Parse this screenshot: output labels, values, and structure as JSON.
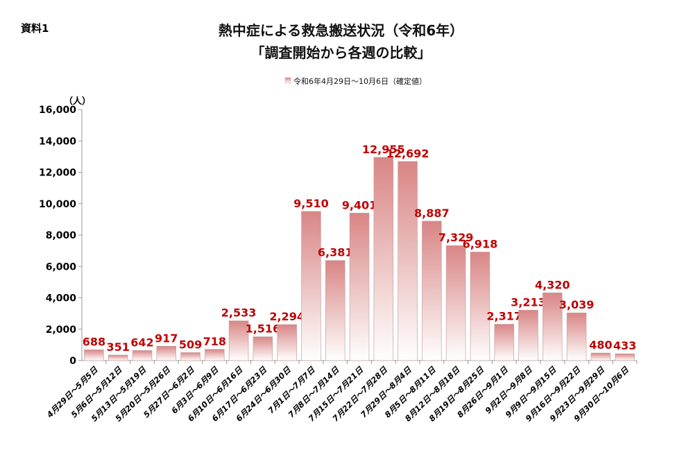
{
  "doc_label": "資料1",
  "title_line1": "熱中症による救急搬送状況（令和6年）",
  "title_line2": "「調査開始から各週の比較」",
  "chart_data": {
    "type": "bar",
    "title": "熱中症による救急搬送状況（令和6年）「調査開始から各週の比較」",
    "ylabel": "（人）",
    "xlabel": "",
    "ylim": [
      0,
      16000
    ],
    "yticks": [
      0,
      2000,
      4000,
      6000,
      8000,
      10000,
      12000,
      14000,
      16000
    ],
    "ytick_labels": [
      "0",
      "2,000",
      "4,000",
      "6,000",
      "8,000",
      "10,000",
      "12,000",
      "14,000",
      "16,000"
    ],
    "legend": {
      "entries": [
        "令和6年4月29日～10月6日（確定値）"
      ],
      "placement": "top"
    },
    "grid": false,
    "categories": [
      "4月29日～5月5日",
      "5月6日～5月12日",
      "5月13日～5月19日",
      "5月20日～5月26日",
      "5月27日～6月2日",
      "6月3日～6月9日",
      "6月10日～6月16日",
      "6月17日～6月23日",
      "6月24日～6月30日",
      "7月1日～7月7日",
      "7月8日～7月14日",
      "7月15日～7月21日",
      "7月22日～7月28日",
      "7月29日～8月4日",
      "8月5日～8月11日",
      "8月12日～8月18日",
      "8月19日～8月25日",
      "8月26日～9月1日",
      "9月2日～9月8日",
      "9月9日～9月15日",
      "9月16日～9月22日",
      "9月23日～9月29日",
      "9月30日～10月6日"
    ],
    "values": [
      688,
      351,
      642,
      917,
      509,
      718,
      2533,
      1516,
      2294,
      9510,
      6381,
      9401,
      12955,
      12692,
      8887,
      7329,
      6918,
      2317,
      3213,
      4320,
      3039,
      480,
      433
    ],
    "data_labels": [
      "688",
      "351",
      "642",
      "917",
      "509",
      "718",
      "2,533",
      "1,516",
      "2,294",
      "9,510",
      "6,381",
      "9,401",
      "12,955",
      "12,692",
      "8,887",
      "7,329",
      "6,918",
      "2,317",
      "3,213",
      "4,320",
      "3,039",
      "480",
      "433"
    ],
    "colors": {
      "bar_top": "#d98585",
      "bar_bottom": "#ffffff",
      "label": "#c00000"
    }
  }
}
